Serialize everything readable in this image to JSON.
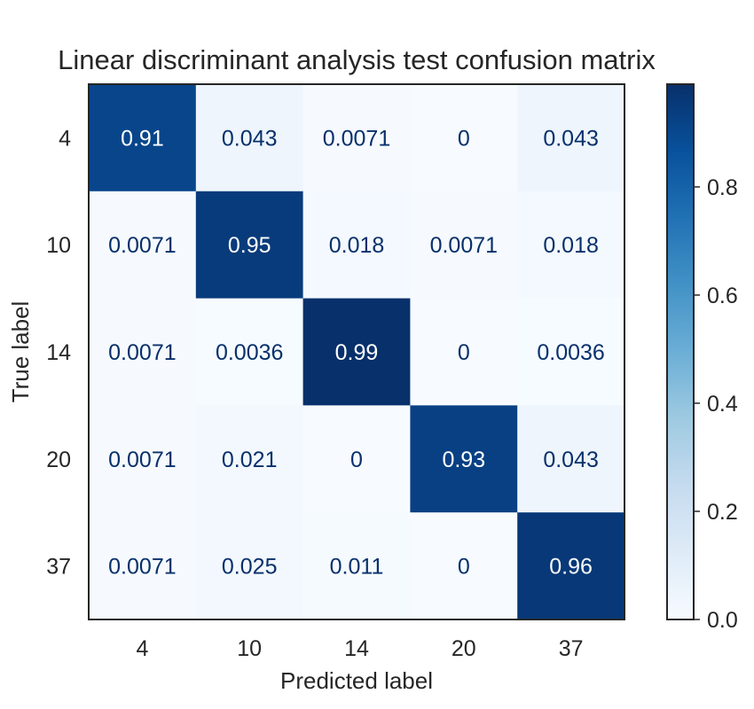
{
  "chart_data": {
    "type": "heatmap",
    "title": "Linear discriminant analysis test confusion matrix",
    "xlabel": "Predicted label",
    "ylabel": "True label",
    "x_categories": [
      "4",
      "10",
      "14",
      "20",
      "37"
    ],
    "y_categories": [
      "4",
      "10",
      "14",
      "20",
      "37"
    ],
    "values": [
      [
        0.91,
        0.043,
        0.0071,
        0,
        0.043
      ],
      [
        0.0071,
        0.95,
        0.018,
        0.0071,
        0.018
      ],
      [
        0.0071,
        0.0036,
        0.99,
        0,
        0.0036
      ],
      [
        0.0071,
        0.021,
        0,
        0.93,
        0.043
      ],
      [
        0.0071,
        0.025,
        0.011,
        0,
        0.96
      ]
    ],
    "value_labels": [
      [
        "0.91",
        "0.043",
        "0.0071",
        "0",
        "0.043"
      ],
      [
        "0.0071",
        "0.95",
        "0.018",
        "0.0071",
        "0.018"
      ],
      [
        "0.0071",
        "0.0036",
        "0.99",
        "0",
        "0.0036"
      ],
      [
        "0.0071",
        "0.021",
        "0",
        "0.93",
        "0.043"
      ],
      [
        "0.0071",
        "0.025",
        "0.011",
        "0",
        "0.96"
      ]
    ],
    "colormap": "Blues",
    "colorbar_range": [
      0,
      0.99
    ],
    "colorbar_ticks": [
      "0.0",
      "0.2",
      "0.4",
      "0.6",
      "0.8"
    ],
    "colorbar_tick_values": [
      0.0,
      0.2,
      0.4,
      0.6,
      0.8
    ],
    "grid": false
  }
}
